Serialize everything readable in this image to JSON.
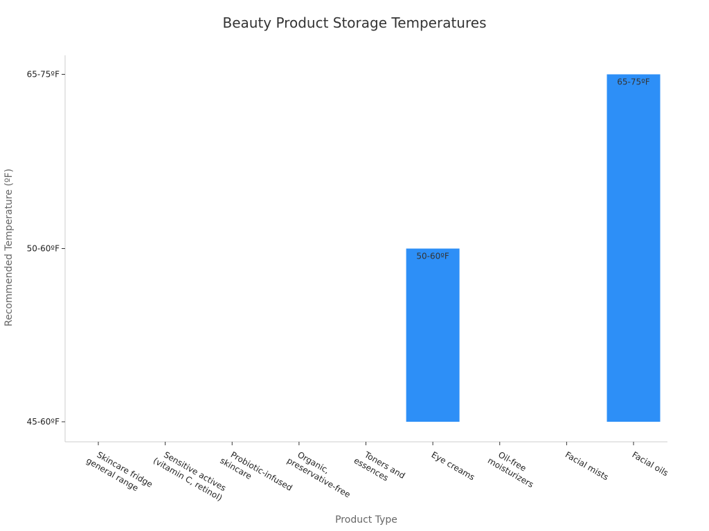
{
  "chart_data": {
    "type": "bar",
    "title": "Beauty Product Storage Temperatures",
    "xlabel": "Product Type",
    "ylabel": "Recommended Temperature (ºF)",
    "y_ticks": [
      "45-60ºF",
      "50-60ºF",
      "65-75ºF"
    ],
    "categories": [
      "Skincare fridge\ngeneral range",
      "Sensitive actives\n(vitamin C, retinol)",
      "Probiotic-infused\nskincare",
      "Organic,\npreservative-free",
      "Toners and\nessences",
      "Eye creams",
      "Oil-free\nmoisturizers",
      "Facial mists",
      "Facial oils"
    ],
    "values": [
      null,
      null,
      null,
      null,
      null,
      "50-60ºF",
      null,
      null,
      "65-75ºF"
    ],
    "data_labels": [
      "",
      "",
      "",
      "",
      "",
      "50-60ºF",
      "",
      "",
      "65-75ºF"
    ],
    "bar_color": "#2d8ff7",
    "grid": false,
    "legend": "none"
  }
}
